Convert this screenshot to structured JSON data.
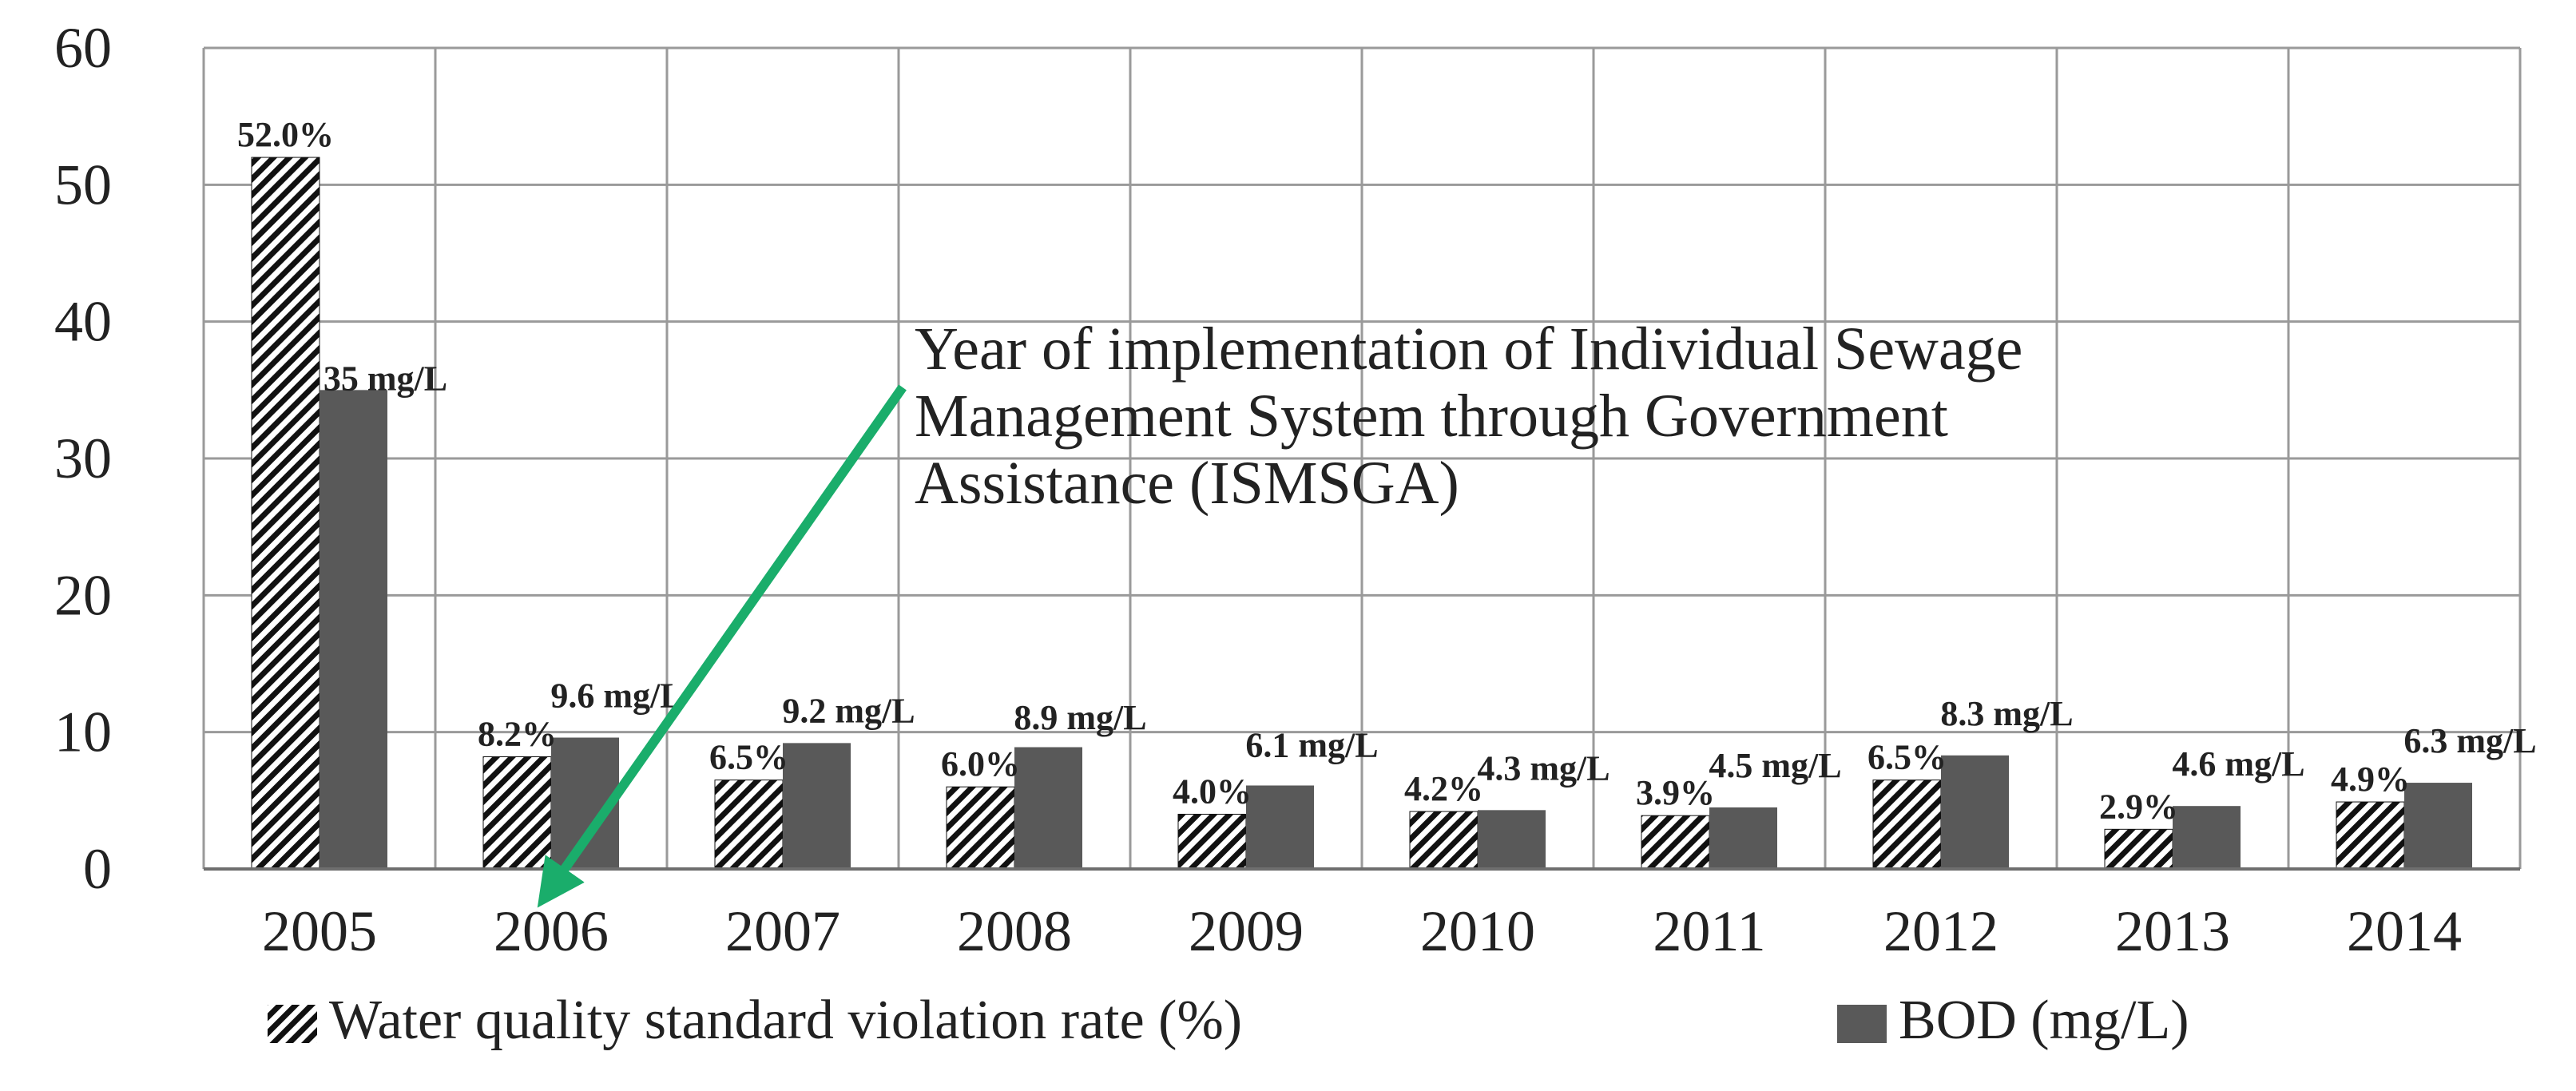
{
  "chart_data": {
    "type": "bar",
    "categories": [
      "2005",
      "2006",
      "2007",
      "2008",
      "2009",
      "2010",
      "2011",
      "2012",
      "2013",
      "2014"
    ],
    "series": [
      {
        "name": "Water quality standard violation rate (%)",
        "values": [
          52.0,
          8.2,
          6.5,
          6.0,
          4.0,
          4.2,
          3.9,
          6.5,
          2.9,
          4.9
        ],
        "labels": [
          "52.0%",
          "8.2%",
          "6.5%",
          "6.0%",
          "4.0%",
          "4.2%",
          "3.9%",
          "6.5%",
          "2.9%",
          "4.9%"
        ],
        "fill": "hatched",
        "color": "#111111"
      },
      {
        "name": "BOD (mg/L)",
        "values": [
          35,
          9.6,
          9.2,
          8.9,
          6.1,
          4.3,
          4.5,
          8.3,
          4.6,
          6.3
        ],
        "labels": [
          "35 mg/L",
          "9.6 mg/L",
          "9.2 mg/L",
          "8.9 mg/L",
          "6.1 mg/L",
          "4.3 mg/L",
          "4.5 mg/L",
          "8.3 mg/L",
          "4.6 mg/L",
          "6.3 mg/L"
        ],
        "fill": "solid",
        "color": "#595959"
      }
    ],
    "y_ticks": [
      "0",
      "10",
      "20",
      "30",
      "40",
      "50",
      "60"
    ],
    "ylim": [
      0,
      60
    ],
    "grid": true,
    "legend_position": "bottom",
    "annotation": {
      "lines": [
        "Year of implementation  of Individual  Sewage",
        "Management  System through  Government",
        "Assistance  (ISMSGA)"
      ],
      "target_category": "2006",
      "arrow_color": "#1aad6b"
    }
  }
}
